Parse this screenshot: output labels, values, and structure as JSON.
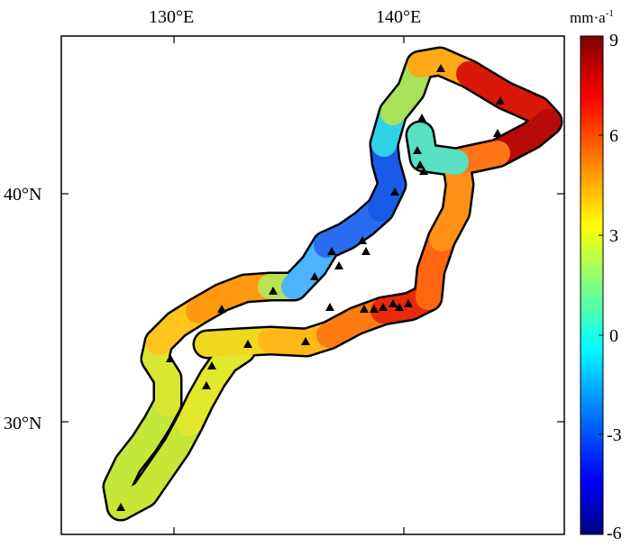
{
  "map": {
    "top_ticks": [
      "130°E",
      "140°E"
    ],
    "left_ticks": [
      "40°N",
      "30°N"
    ],
    "colorbar": {
      "unit_base": "mm·a",
      "unit_exp": "-1",
      "min": -6,
      "max": 9,
      "ticks": [
        "9",
        "6",
        "3",
        "0",
        "-3",
        "-6"
      ],
      "colors": [
        "#00007f",
        "#0000ff",
        "#007fff",
        "#00ffff",
        "#7fff7f",
        "#ffff00",
        "#ff7f00",
        "#ff0000",
        "#7f0000"
      ]
    },
    "stations_count_shown": 33
  }
}
